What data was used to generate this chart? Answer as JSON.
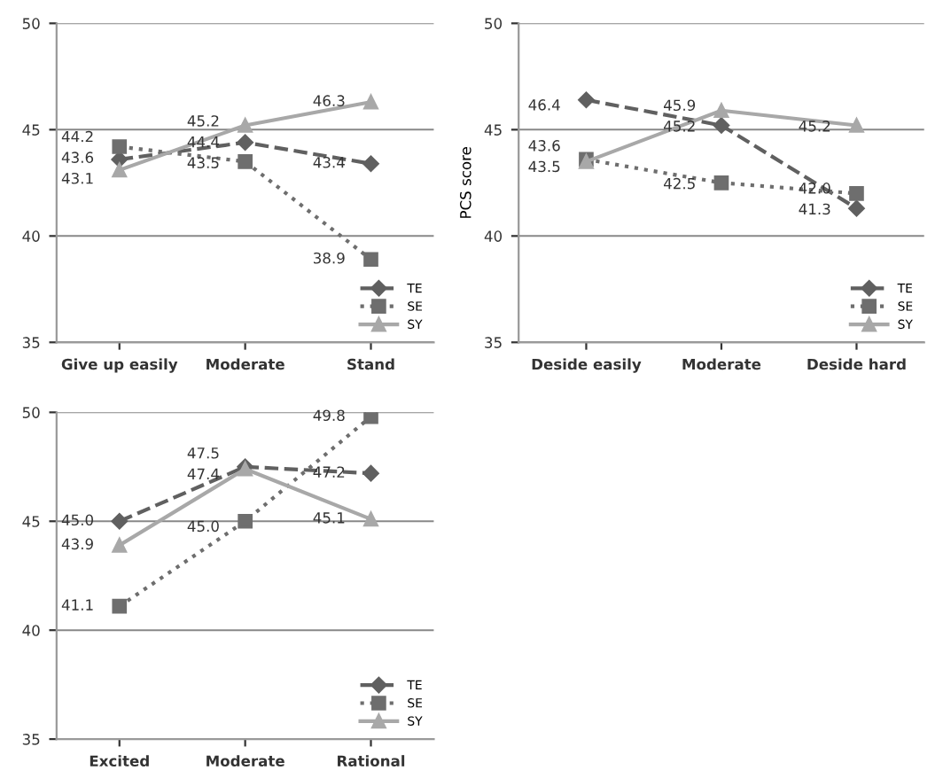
{
  "chart_data": [
    {
      "type": "line",
      "categories": [
        "Give up easily",
        "Moderate",
        "Stand"
      ],
      "ylim": [
        35,
        50
      ],
      "yticks": [
        35,
        40,
        45,
        50
      ],
      "grid": "y",
      "legend": "bottom right",
      "series": [
        {
          "name": "TE",
          "color": "#606060",
          "line_style": "dashed",
          "marker": "diamond",
          "values": [
            43.6,
            44.4,
            43.4
          ],
          "value_labels": [
            "43.6",
            "44.4",
            "43.4"
          ]
        },
        {
          "name": "SE",
          "color": "#6e6e6e",
          "line_style": "dotted",
          "marker": "square",
          "values": [
            44.2,
            43.5,
            38.9
          ],
          "value_labels": [
            "44.2",
            "43.5",
            "38.9"
          ]
        },
        {
          "name": "SY",
          "color": "#a8a8a8",
          "line_style": "solid",
          "marker": "triangle",
          "values": [
            43.1,
            45.2,
            46.3
          ],
          "value_labels": [
            "43.1",
            "45.2",
            "46.3"
          ]
        }
      ]
    },
    {
      "type": "line",
      "categories": [
        "Deside easily",
        "Moderate",
        "Deside hard"
      ],
      "ylabel": "PCS score",
      "ylim": [
        35,
        50
      ],
      "yticks": [
        35,
        40,
        45,
        50
      ],
      "grid": "y",
      "legend": "bottom right",
      "series": [
        {
          "name": "TE",
          "color": "#606060",
          "line_style": "dashed",
          "marker": "diamond",
          "values": [
            46.4,
            45.2,
            41.3
          ],
          "value_labels": [
            "46.4",
            "45.2",
            "41.3"
          ]
        },
        {
          "name": "SE",
          "color": "#6e6e6e",
          "line_style": "dotted",
          "marker": "square",
          "values": [
            43.6,
            42.5,
            42.0
          ],
          "value_labels": [
            "43.6",
            "42.5",
            "42.0"
          ]
        },
        {
          "name": "SY",
          "color": "#a8a8a8",
          "line_style": "solid",
          "marker": "triangle",
          "values": [
            43.5,
            45.9,
            45.2
          ],
          "value_labels": [
            "43.5",
            "45.9",
            "45.2"
          ]
        }
      ]
    },
    {
      "type": "line",
      "categories": [
        "Excited",
        "Moderate",
        "Rational"
      ],
      "ylim": [
        35,
        50
      ],
      "yticks": [
        35,
        40,
        45,
        50
      ],
      "grid": "y",
      "legend": "bottom right",
      "series": [
        {
          "name": "TE",
          "color": "#606060",
          "line_style": "dashed",
          "marker": "diamond",
          "values": [
            45.0,
            47.5,
            47.2
          ],
          "value_labels": [
            "45.0",
            "47.5",
            "47.2"
          ]
        },
        {
          "name": "SE",
          "color": "#6e6e6e",
          "line_style": "dotted",
          "marker": "square",
          "values": [
            41.1,
            45.0,
            49.8
          ],
          "value_labels": [
            "41.1",
            "45.0",
            "49.8"
          ]
        },
        {
          "name": "SY",
          "color": "#a8a8a8",
          "line_style": "solid",
          "marker": "triangle",
          "values": [
            43.9,
            47.4,
            45.1
          ],
          "value_labels": [
            "43.9",
            "47.4",
            "45.1"
          ]
        }
      ]
    }
  ]
}
